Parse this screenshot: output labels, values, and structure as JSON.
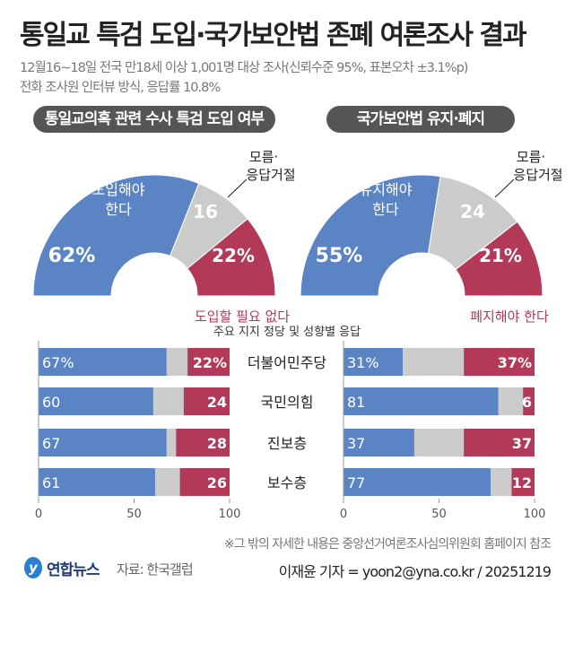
{
  "title": "통일교 특검 도입·국가보안법 존폐 여론조사 결과",
  "subtitle1": "12월16~18일 전국 만18세 이상 1,001명 대상 조사(신뢰수준 95%, 표본오차 ±3.1%p)",
  "subtitle2": "전화 조사원 인터뷰 방식, 응답률 10.8%",
  "colors": {
    "blue": "#5b84c4",
    "gray": "#cbcbcb",
    "red": "#b23a58",
    "pill": "#555555"
  },
  "chart_data": [
    {
      "type": "pie",
      "title": "통일교의혹 관련 수사 특검 도입 여부",
      "slices": [
        {
          "label": "도입해야 한다",
          "value": 62,
          "display": "62%"
        },
        {
          "label": "모름·응답거절",
          "value": 16,
          "display": "16"
        },
        {
          "label": "도입할 필요 없다",
          "value": 22,
          "display": "22%"
        }
      ]
    },
    {
      "type": "pie",
      "title": "국가보안법 유지·폐지",
      "slices": [
        {
          "label": "유지해야 한다",
          "value": 55,
          "display": "55%"
        },
        {
          "label": "모름·응답거절",
          "value": 24,
          "display": "24"
        },
        {
          "label": "폐지해야 한다",
          "value": 21,
          "display": "21%"
        }
      ]
    },
    {
      "type": "bar",
      "stacked": true,
      "orientation": "horizontal",
      "title": "주요 지지 정당 및 성향별 응답",
      "categories": [
        "더불어민주당",
        "국민의힘",
        "진보층",
        "보수층"
      ],
      "xlim": [
        0,
        100
      ],
      "xticks": [
        "0",
        "50",
        "100"
      ],
      "panels": [
        {
          "blue": [
            67,
            60,
            67,
            61
          ],
          "red": [
            22,
            24,
            28,
            26
          ],
          "blue_labels": [
            "67%",
            "60",
            "67",
            "61"
          ],
          "red_labels": [
            "22%",
            "24",
            "28",
            "26"
          ]
        },
        {
          "blue": [
            31,
            81,
            37,
            77
          ],
          "red": [
            37,
            6,
            37,
            12
          ],
          "blue_labels": [
            "31%",
            "81",
            "37",
            "77"
          ],
          "red_labels": [
            "37%",
            "6",
            "37",
            "12"
          ]
        }
      ]
    }
  ],
  "note": "※그 밖의 자세한 내용은 중앙선거여론조사심의위원회 홈페이지 참조",
  "logo": "연합뉴스",
  "source": "자료: 한국갤럽",
  "credit": "이재윤 기자 = yoon2@yna.co.kr / 20251219"
}
